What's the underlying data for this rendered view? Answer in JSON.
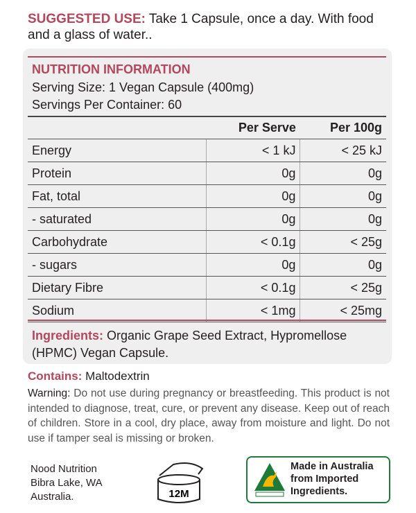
{
  "suggested_use": {
    "label": "SUGGESTED USE:",
    "text": "Take 1 Capsule, once a day. With food and a glass of water.."
  },
  "nutrition": {
    "title": "NUTRITION INFORMATION",
    "serving_size": "Serving Size:  1 Vegan Capsule (400mg)",
    "servings_per_container": "Servings Per Container:  60",
    "columns": [
      "Per Serve",
      "Per 100g"
    ],
    "rows": [
      [
        "Energy",
        "< 1 kJ",
        "< 25 kJ"
      ],
      [
        "Protein",
        "0g",
        "0g"
      ],
      [
        "Fat, total",
        "0g",
        "0g"
      ],
      [
        "- saturated",
        "0g",
        "0g"
      ],
      [
        "Carbohydrate",
        "< 0.1g",
        "< 25g"
      ],
      [
        "- sugars",
        "0g",
        "0g"
      ],
      [
        "Dietary Fibre",
        "< 0.1g",
        "< 25g"
      ],
      [
        "Sodium",
        "< 1mg",
        "< 25mg"
      ]
    ]
  },
  "ingredients": {
    "label": "Ingredients:",
    "text": "Organic Grape Seed Extract, Hypromellose (HPMC) Vegan Capsule."
  },
  "contains": {
    "label": "Contains:",
    "text": "Maltodextrin"
  },
  "warning": {
    "label": "Warning:",
    "text": "Do not use during pregnancy or breastfeeding. This product is not intended to diagnose, treat, cure, or prevent any disease.  Keep out of reach of children. Store in a cool, dry place, away from moisture and light. Do not use if tamper seal is missing or broken."
  },
  "address": [
    "Nood Nutrition",
    "Bibra Lake, WA",
    "Australia."
  ],
  "shelf_life": "12M",
  "badge": [
    "Made in Australia",
    "from Imported",
    "Ingredients."
  ]
}
